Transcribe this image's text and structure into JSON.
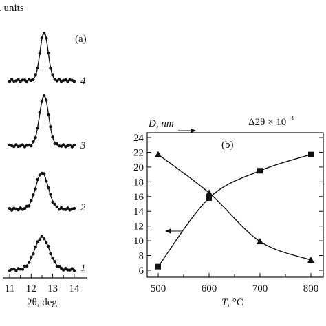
{
  "chart_data": [
    {
      "panel": "(a)",
      "type": "line",
      "ylabel": ". units",
      "xlabel": "2θ, deg",
      "xlim": [
        10.8,
        14.2
      ],
      "xticks": [
        "11",
        "12",
        "13",
        "14"
      ],
      "series": [
        {
          "label": "4",
          "center": 12.6,
          "fwhm": 0.44
        },
        {
          "label": "3",
          "center": 12.6,
          "fwhm": 0.5
        },
        {
          "label": "2",
          "center": 12.5,
          "fwhm": 0.68
        },
        {
          "label": "1",
          "center": 12.5,
          "fwhm": 0.82
        }
      ]
    },
    {
      "panel": "(b)",
      "type": "line",
      "ylabel": "D, nm",
      "ylabel_right": "Δ2θ × 10",
      "ylabel_right_exp": "−3",
      "xlabel_var": "T",
      "xlabel_unit": ", °C",
      "xlim": [
        490,
        810
      ],
      "ylim": [
        5,
        25
      ],
      "xticks": [
        500,
        600,
        700,
        800
      ],
      "yticks": [
        6,
        8,
        10,
        12,
        14,
        16,
        18,
        20,
        22,
        24
      ],
      "series": [
        {
          "marker": "square",
          "axis": "left",
          "x": [
            500,
            600,
            700,
            800
          ],
          "y": [
            6.5,
            15.8,
            19.5,
            21.7
          ]
        },
        {
          "marker": "triangle",
          "axis": "right",
          "x": [
            500,
            600,
            700,
            800
          ],
          "y": [
            21.7,
            16.5,
            9.9,
            7.4
          ]
        }
      ]
    }
  ]
}
